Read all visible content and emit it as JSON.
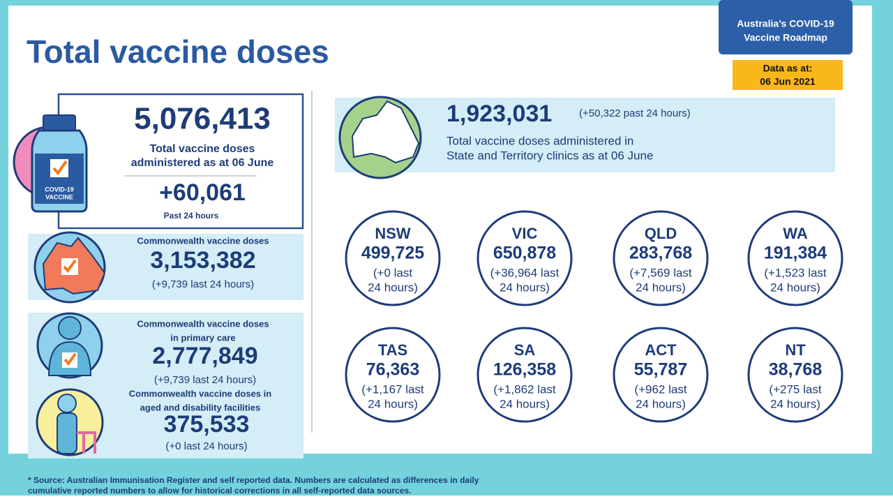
{
  "header": {
    "title": "Total vaccine doses",
    "roadmap": [
      "Australia’s COVID-19",
      "Vaccine Roadmap"
    ],
    "date_label": "Data as at:",
    "date": "06 Jun 2021"
  },
  "total": {
    "value": "5,076,413",
    "caption": [
      "Total vaccine doses",
      "administered as at 06 June"
    ],
    "change": "+60,061",
    "change_caption": "Past 24 hours",
    "icon_label": [
      "COVID-19",
      "VACCINE"
    ]
  },
  "commonwealth": {
    "label": [
      "Commonwealth vaccine doses"
    ],
    "value": "3,153,382",
    "change": "(+9,739 last 24 hours)"
  },
  "primary_care": {
    "label": [
      "Commonwealth vaccine doses",
      "in primary care"
    ],
    "value": "2,777,849",
    "change": "(+9,739 last 24 hours)"
  },
  "aged_care": {
    "label": [
      "Commonwealth vaccine doses in",
      "aged and disability facilities"
    ],
    "value": "375,533",
    "change": "(+0 last 24 hours)"
  },
  "state_clinics": {
    "value": "1,923,031",
    "change": "(+50,322 past 24 hours)",
    "caption": [
      "Total vaccine doses administered in",
      "State and Territory clinics as at 06 June"
    ]
  },
  "states": [
    {
      "name": "NSW",
      "value": "499,725",
      "change": [
        "(+0 last",
        "24 hours)"
      ]
    },
    {
      "name": "VIC",
      "value": "650,878",
      "change": [
        "(+36,964 last",
        "24 hours)"
      ]
    },
    {
      "name": "QLD",
      "value": "283,768",
      "change": [
        "(+7,569 last",
        "24 hours)"
      ]
    },
    {
      "name": "WA",
      "value": "191,384",
      "change": [
        "(+1,523 last",
        "24 hours)"
      ]
    },
    {
      "name": "TAS",
      "value": "76,363",
      "change": [
        "(+1,167 last",
        "24 hours)"
      ]
    },
    {
      "name": "SA",
      "value": "126,358",
      "change": [
        "(+1,862 last",
        "24 hours)"
      ]
    },
    {
      "name": "ACT",
      "value": "55,787",
      "change": [
        "(+962 last",
        "24 hours)"
      ]
    },
    {
      "name": "NT",
      "value": "38,768",
      "change": [
        "(+275 last",
        "24 hours)"
      ]
    }
  ],
  "footnote": [
    "* Source: Australian Immunisation Register and self reported data. Numbers are calculated as differences in daily",
    "cumulative reported numbers to allow for historical corrections in all self-reported data sources."
  ]
}
